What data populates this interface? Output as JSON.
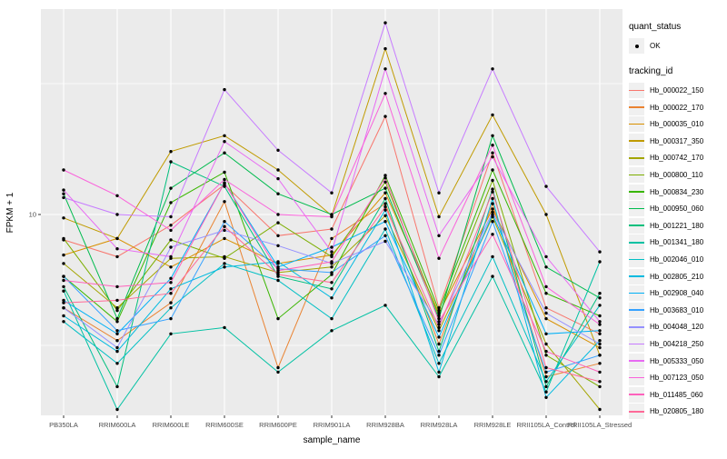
{
  "figure_type": "ggplot-line-chart",
  "chart_data": {
    "type": "line",
    "title": "",
    "xlabel": "sample_name",
    "ylabel": "FPKM + 1",
    "y_scale": "log10",
    "y_major_breaks": [
      10
    ],
    "y_major_labels": [
      "10"
    ],
    "y_minor_breaks": [
      3.162,
      31.62
    ],
    "grid": "on",
    "panel_background": "#ebebeb",
    "gridline_color": "#ffffff",
    "point_color": "#000000",
    "legend_position": "right",
    "categories": [
      "PB350LA",
      "RRIM600LA",
      "RRIM600LE",
      "RRIM600SE",
      "RRIM600PE",
      "RRIM901LA",
      "RRIM928BA",
      "RRIM928LA",
      "RRIM928LE",
      "RRII105LA_Control",
      "RRII105LA_Stressed"
    ],
    "series": [
      {
        "name": "Hb_000022_150",
        "color": "#F8766D",
        "values": [
          8.0,
          6.9,
          9.1,
          13.0,
          8.3,
          8.8,
          23.7,
          4.4,
          17.2,
          4.4,
          3.5
        ]
      },
      {
        "name": "Hb_000022_170",
        "color": "#EA8331",
        "values": [
          4.4,
          3.3,
          4.6,
          11.2,
          2.6,
          8.1,
          11.0,
          3.2,
          11.0,
          2.4,
          2.7
        ]
      },
      {
        "name": "Hb_000035_010",
        "color": "#D89000",
        "values": [
          7.0,
          8.1,
          6.3,
          8.1,
          6.5,
          7.0,
          12.1,
          4.2,
          10.5,
          4.0,
          3.1
        ]
      },
      {
        "name": "Hb_000317_350",
        "color": "#C09B00",
        "values": [
          9.7,
          8.1,
          17.4,
          20.0,
          14.8,
          9.9,
          43.0,
          9.8,
          24.0,
          10.0,
          2.9
        ]
      },
      {
        "name": "Hb_000742_170",
        "color": "#A3A500",
        "values": [
          6.5,
          4.4,
          6.8,
          6.9,
          6.0,
          6.3,
          9.9,
          3.6,
          9.8,
          3.2,
          1.8
        ]
      },
      {
        "name": "Hb_000800_110",
        "color": "#7CAE00",
        "values": [
          8.1,
          4.3,
          8.0,
          6.8,
          9.3,
          6.9,
          13.3,
          4.1,
          13.5,
          2.9,
          2.2
        ]
      },
      {
        "name": "Hb_000834_230",
        "color": "#39B600",
        "values": [
          5.8,
          3.9,
          11.1,
          14.5,
          4.0,
          5.9,
          14.1,
          4.3,
          14.8,
          5.0,
          4.1
        ]
      },
      {
        "name": "Hb_000950_060",
        "color": "#00BB4E",
        "values": [
          12.0,
          4.0,
          12.6,
          17.2,
          12.0,
          10.0,
          12.6,
          4.0,
          20.0,
          6.3,
          4.8
        ]
      },
      {
        "name": "Hb_001221_180",
        "color": "#00BF7D",
        "values": [
          5.3,
          2.2,
          15.9,
          12.8,
          5.8,
          5.2,
          11.5,
          3.0,
          12.5,
          2.2,
          5.0
        ]
      },
      {
        "name": "Hb_001341_180",
        "color": "#00C1A3",
        "values": [
          5.1,
          1.8,
          3.5,
          3.7,
          2.5,
          3.6,
          4.5,
          2.4,
          5.8,
          2.1,
          6.6
        ]
      },
      {
        "name": "Hb_002046_010",
        "color": "#00BFC4",
        "values": [
          3.9,
          2.7,
          4.4,
          6.5,
          5.6,
          4.0,
          8.8,
          2.7,
          6.9,
          2.3,
          4.5
        ]
      },
      {
        "name": "Hb_002805_210",
        "color": "#00BAE0",
        "values": [
          4.1,
          3.0,
          5.2,
          6.3,
          6.6,
          4.8,
          10.4,
          2.5,
          11.5,
          2.0,
          3.3
        ]
      },
      {
        "name": "Hb_002908_040",
        "color": "#00B0F6",
        "values": [
          4.7,
          3.5,
          5.7,
          13.2,
          6.3,
          7.5,
          9.4,
          3.4,
          10.0,
          3.5,
          3.6
        ]
      },
      {
        "name": "Hb_003683_010",
        "color": "#35A2FF",
        "values": [
          5.8,
          3.6,
          4.0,
          9.4,
          6.2,
          6.0,
          8.3,
          2.9,
          9.4,
          2.5,
          2.9
        ]
      },
      {
        "name": "Hb_004048_120",
        "color": "#9590FF",
        "values": [
          4.4,
          3.1,
          7.5,
          8.7,
          7.6,
          6.5,
          7.9,
          3.8,
          10.2,
          4.2,
          3.2
        ]
      },
      {
        "name": "Hb_004218_250",
        "color": "#C77CFF",
        "values": [
          11.6,
          10.0,
          9.8,
          30.0,
          17.6,
          12.1,
          54.0,
          12.1,
          36.0,
          12.8,
          7.2
        ]
      },
      {
        "name": "Hb_005333_050",
        "color": "#E76BF3",
        "values": [
          12.4,
          7.4,
          6.9,
          19.0,
          13.7,
          7.2,
          36.0,
          8.3,
          16.6,
          6.9,
          3.9
        ]
      },
      {
        "name": "Hb_007123_050",
        "color": "#FA62DB",
        "values": [
          14.8,
          11.8,
          8.7,
          13.6,
          10.0,
          9.8,
          29.0,
          6.8,
          18.4,
          5.3,
          3.8
        ]
      },
      {
        "name": "Hb_011485_060",
        "color": "#FF62BC",
        "values": [
          5.6,
          5.3,
          5.5,
          13.2,
          6.1,
          6.6,
          13.8,
          3.9,
          8.4,
          3.0,
          2.5
        ]
      },
      {
        "name": "Hb_020805_180",
        "color": "#FF6A98",
        "values": [
          4.6,
          4.7,
          5.0,
          9.0,
          5.9,
          5.5,
          10.7,
          3.7,
          12.2,
          2.6,
          2.3
        ]
      }
    ]
  },
  "legend": {
    "quant_status": {
      "title": "quant_status",
      "items": [
        {
          "label": "OK",
          "key": "black-point"
        }
      ]
    },
    "tracking_id": {
      "title": "tracking_id"
    }
  }
}
